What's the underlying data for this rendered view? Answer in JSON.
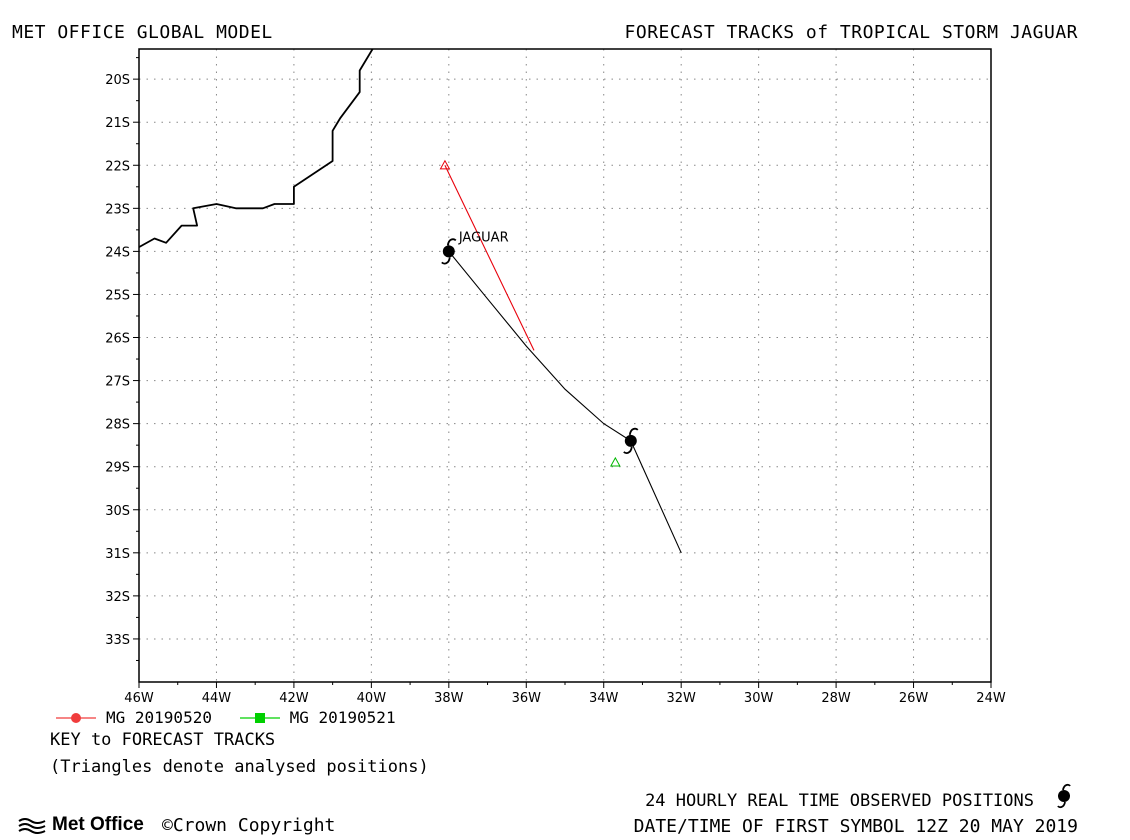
{
  "header": {
    "left_title": "MET OFFICE GLOBAL MODEL",
    "right_title": "FORECAST TRACKS of TROPICAL STORM JAGUAR"
  },
  "chart_data": {
    "type": "line",
    "xlim": [
      -46,
      -24
    ],
    "ylim": [
      -34,
      -19.3
    ],
    "x_ticks": [
      -46,
      -44,
      -42,
      -40,
      -38,
      -36,
      -34,
      -32,
      -30,
      -28,
      -26,
      -24
    ],
    "x_tick_labels": [
      "46W",
      "44W",
      "42W",
      "40W",
      "38W",
      "36W",
      "34W",
      "32W",
      "30W",
      "28W",
      "26W",
      "24W"
    ],
    "y_ticks": [
      -20,
      -21,
      -22,
      -23,
      -24,
      -25,
      -26,
      -27,
      -28,
      -29,
      -30,
      -31,
      -32,
      -33
    ],
    "y_tick_labels": [
      "20S",
      "21S",
      "22S",
      "23S",
      "24S",
      "25S",
      "26S",
      "27S",
      "28S",
      "29S",
      "30S",
      "31S",
      "32S",
      "33S"
    ],
    "grid": true,
    "storm_label": "JAGUAR",
    "coastline": [
      [
        -46.0,
        -23.9
      ],
      [
        -45.6,
        -23.7
      ],
      [
        -45.3,
        -23.8
      ],
      [
        -44.9,
        -23.4
      ],
      [
        -44.5,
        -23.4
      ],
      [
        -44.6,
        -23.0
      ],
      [
        -44.0,
        -22.9
      ],
      [
        -43.5,
        -23.0
      ],
      [
        -42.8,
        -23.0
      ],
      [
        -42.5,
        -22.9
      ],
      [
        -42.0,
        -22.9
      ],
      [
        -42.0,
        -22.5
      ],
      [
        -41.0,
        -21.9
      ],
      [
        -41.0,
        -21.2
      ],
      [
        -40.8,
        -20.9
      ],
      [
        -40.3,
        -20.3
      ],
      [
        -40.3,
        -19.8
      ],
      [
        -39.9,
        -19.2
      ],
      [
        -39.8,
        -19.0
      ]
    ],
    "observed_positions": [
      {
        "lon": -38.0,
        "lat": -24.0
      },
      {
        "lon": -33.3,
        "lat": -28.4
      }
    ],
    "series": [
      {
        "name": "MG 20190520",
        "color": "#e8000b",
        "track": [
          [
            -38.1,
            -22.0
          ],
          [
            -35.8,
            -26.3
          ]
        ],
        "analysed_position": {
          "lon": -38.1,
          "lat": -22.0
        }
      },
      {
        "name": "MG 20190521",
        "color": "#00b800",
        "track": [],
        "analysed_position": {
          "lon": -33.7,
          "lat": -28.9
        }
      }
    ],
    "observed_track": [
      [
        -38.0,
        -24.0
      ],
      [
        -37.0,
        -25.1
      ],
      [
        -36.0,
        -26.2
      ],
      [
        -35.0,
        -27.2
      ],
      [
        -34.0,
        -28.0
      ],
      [
        -33.3,
        -28.4
      ],
      [
        -32.0,
        -31.0
      ]
    ]
  },
  "legend": {
    "items": [
      {
        "label": "MG 20190520",
        "color": "#f03c3c",
        "marker": "circle"
      },
      {
        "label": "MG 20190521",
        "color": "#00d000",
        "marker": "square"
      }
    ]
  },
  "key": {
    "title": "KEY to FORECAST TRACKS",
    "note": "(Triangles denote analysed positions)"
  },
  "footer": {
    "observed_text": "24 HOURLY REAL TIME OBSERVED POSITIONS",
    "datetime_text": "DATE/TIME OF FIRST SYMBOL 12Z 20 MAY 2019",
    "logo_text": "Met Office",
    "copyright_text": "©Crown Copyright"
  }
}
